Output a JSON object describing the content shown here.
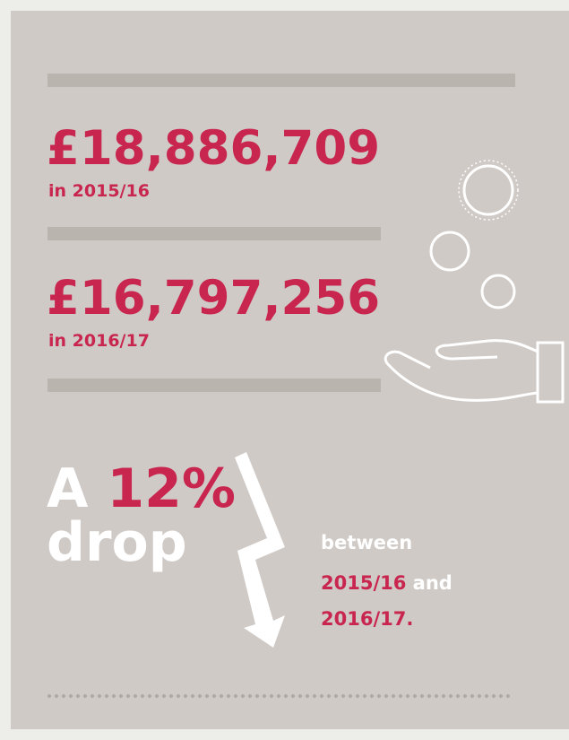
{
  "figures": [
    {
      "amount": "£18,886,709",
      "prefix": "in",
      "period": "2015/16"
    },
    {
      "amount": "£16,797,256",
      "prefix": "in",
      "period": "2016/17"
    }
  ],
  "change": {
    "lead": "A",
    "percent": "12%",
    "word": "drop"
  },
  "note": {
    "line1": "between",
    "from": "2015/16",
    "connector": "and",
    "to": "2016/17."
  }
}
